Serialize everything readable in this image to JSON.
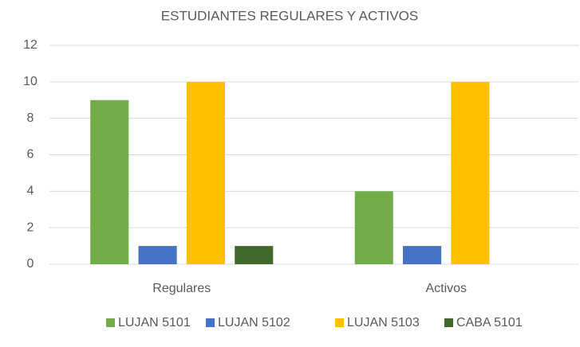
{
  "chart_data": {
    "type": "bar",
    "title": "ESTUDIANTES REGULARES Y ACTIVOS",
    "categories": [
      "Regulares",
      "Activos"
    ],
    "series": [
      {
        "name": "LUJAN 5101",
        "color": "#70ad47",
        "values": [
          9,
          4
        ]
      },
      {
        "name": "LUJAN 5102",
        "color": "#4472c4",
        "values": [
          1,
          1
        ]
      },
      {
        "name": "LUJAN 5103",
        "color": "#ffc000",
        "values": [
          10,
          10
        ]
      },
      {
        "name": "CABA 5101",
        "color": "#43682b",
        "values": [
          1,
          0
        ]
      }
    ],
    "ylim": [
      0,
      12
    ],
    "yticks": [
      0,
      2,
      4,
      6,
      8,
      10,
      12
    ],
    "grid": true,
    "legend": "bottom"
  }
}
